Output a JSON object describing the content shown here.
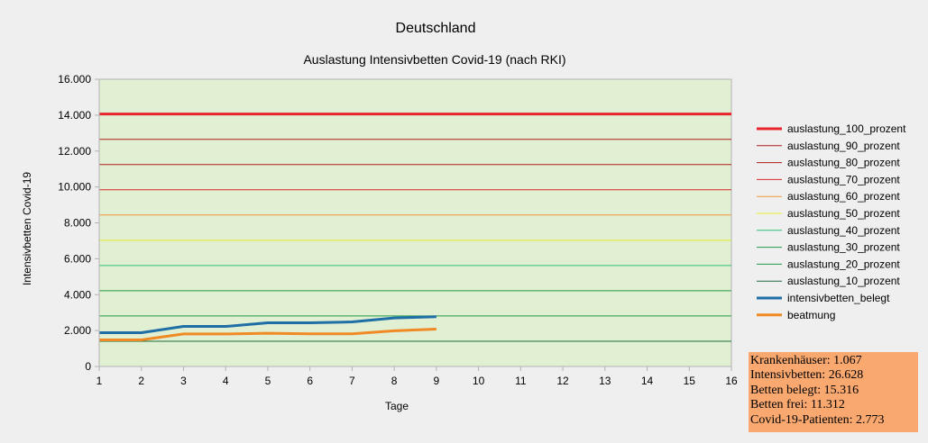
{
  "title": "Deutschland",
  "subtitle": "Auslastung Intensivbetten Covid-19 (nach RKI)",
  "chart_data": {
    "type": "line",
    "title": "Deutschland",
    "subtitle": "Auslastung Intensivbetten Covid-19 (nach RKI)",
    "xlabel": "Tage",
    "ylabel": "Intensivbetten Covid-19",
    "xlim": [
      1,
      16
    ],
    "ylim": [
      0,
      16000
    ],
    "x_ticks": [
      "1",
      "2",
      "3",
      "4",
      "5",
      "6",
      "7",
      "8",
      "9",
      "10",
      "11",
      "12",
      "13",
      "14",
      "15",
      "16"
    ],
    "y_ticks": [
      {
        "value": 0,
        "label": "0"
      },
      {
        "value": 2000,
        "label": "2.000"
      },
      {
        "value": 4000,
        "label": "4.000"
      },
      {
        "value": 6000,
        "label": "6.000"
      },
      {
        "value": 8000,
        "label": "8.000"
      },
      {
        "value": 10000,
        "label": "10.000"
      },
      {
        "value": 12000,
        "label": "12.000"
      },
      {
        "value": 14000,
        "label": "14.000"
      },
      {
        "value": 16000,
        "label": "16.000"
      }
    ],
    "grid": false,
    "legend_position": "right",
    "plot_background": "#e1efd3",
    "series": [
      {
        "name": "auslastung_100_prozent",
        "color": "#e8252b",
        "width": 3,
        "x": [
          1,
          16
        ],
        "values": [
          14060,
          14060
        ]
      },
      {
        "name": "auslastung_90_prozent",
        "color": "#b01c1c",
        "width": 1,
        "x": [
          1,
          16
        ],
        "values": [
          12654,
          12654
        ]
      },
      {
        "name": "auslastung_80_prozent",
        "color": "#b01c1c",
        "width": 1,
        "x": [
          1,
          16
        ],
        "values": [
          11248,
          11248
        ]
      },
      {
        "name": "auslastung_70_prozent",
        "color": "#d52a2a",
        "width": 1,
        "x": [
          1,
          16
        ],
        "values": [
          9842,
          9842
        ]
      },
      {
        "name": "auslastung_60_prozent",
        "color": "#f2953a",
        "width": 1,
        "x": [
          1,
          16
        ],
        "values": [
          8436,
          8436
        ]
      },
      {
        "name": "auslastung_50_prozent",
        "color": "#e6ec2a",
        "width": 1,
        "x": [
          1,
          16
        ],
        "values": [
          7030,
          7030
        ]
      },
      {
        "name": "auslastung_40_prozent",
        "color": "#2fbf73",
        "width": 1,
        "x": [
          1,
          16
        ],
        "values": [
          5624,
          5624
        ]
      },
      {
        "name": "auslastung_30_prozent",
        "color": "#1f9a48",
        "width": 1,
        "x": [
          1,
          16
        ],
        "values": [
          4218,
          4218
        ]
      },
      {
        "name": "auslastung_20_prozent",
        "color": "#1f9a48",
        "width": 1,
        "x": [
          1,
          16
        ],
        "values": [
          2812,
          2812
        ]
      },
      {
        "name": "auslastung_10_prozent",
        "color": "#1c6b3a",
        "width": 1,
        "x": [
          1,
          16
        ],
        "values": [
          1406,
          1406
        ]
      },
      {
        "name": "intensivbetten_belegt",
        "color": "#1f6ea6",
        "width": 3,
        "x": [
          1,
          2,
          3,
          4,
          5,
          6,
          7,
          8,
          9
        ],
        "values": [
          1880,
          1880,
          2230,
          2230,
          2430,
          2430,
          2480,
          2700,
          2773
        ]
      },
      {
        "name": "beatmung",
        "color": "#f08a24",
        "width": 3,
        "x": [
          1,
          2,
          3,
          4,
          5,
          6,
          7,
          8,
          9
        ],
        "values": [
          1480,
          1480,
          1810,
          1810,
          1850,
          1820,
          1820,
          1990,
          2080
        ]
      }
    ]
  },
  "info_box": {
    "lines": [
      "Krankenhäuser: 1.067",
      "Intensivbetten: 26.628",
      "Betten belegt: 15.316",
      "Betten frei: 11.312",
      "Covid-19-Patienten: 2.773"
    ]
  }
}
